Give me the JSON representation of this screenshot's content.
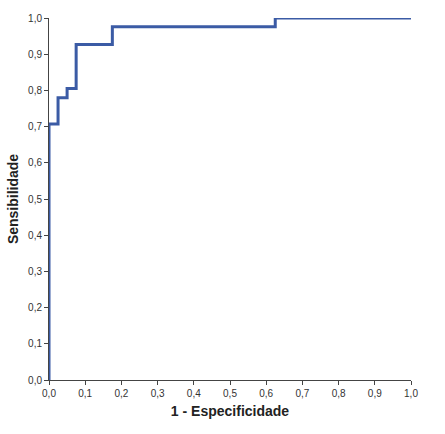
{
  "chart_data": {
    "type": "line",
    "x_label": "1 - Especificidade",
    "y_label": "Sensibilidade",
    "x": [
      0,
      0,
      0.025,
      0.05,
      0.075,
      0.175,
      0.625,
      1.0
    ],
    "values": [
      0,
      0.707,
      0.78,
      0.805,
      0.927,
      0.976,
      1.0,
      1.0
    ],
    "color": "#3b5ba5",
    "line_style": "step",
    "grid": false,
    "xlim": [
      0,
      1
    ],
    "ylim": [
      0,
      1
    ],
    "xticks": [
      {
        "value": 0,
        "label": "0,0"
      },
      {
        "value": 0.1,
        "label": "0,1"
      },
      {
        "value": 0.2,
        "label": "0,2"
      },
      {
        "value": 0.3,
        "label": "0,3"
      },
      {
        "value": 0.4,
        "label": "0,4"
      },
      {
        "value": 0.5,
        "label": "0,5"
      },
      {
        "value": 0.6,
        "label": "0,6"
      },
      {
        "value": 0.7,
        "label": "0,7"
      },
      {
        "value": 0.8,
        "label": "0,8"
      },
      {
        "value": 0.9,
        "label": "0,9"
      },
      {
        "value": 1,
        "label": "1,0"
      }
    ],
    "yticks": [
      {
        "value": 0,
        "label": "0,0"
      },
      {
        "value": 0.1,
        "label": "0,1"
      },
      {
        "value": 0.2,
        "label": "0,2"
      },
      {
        "value": 0.3,
        "label": "0,3"
      },
      {
        "value": 0.4,
        "label": "0,4"
      },
      {
        "value": 0.5,
        "label": "0,5"
      },
      {
        "value": 0.6,
        "label": "0,6"
      },
      {
        "value": 0.7,
        "label": "0,7"
      },
      {
        "value": 0.8,
        "label": "0,8"
      },
      {
        "value": 0.9,
        "label": "0,9"
      },
      {
        "value": 1,
        "label": "1,0"
      }
    ]
  }
}
